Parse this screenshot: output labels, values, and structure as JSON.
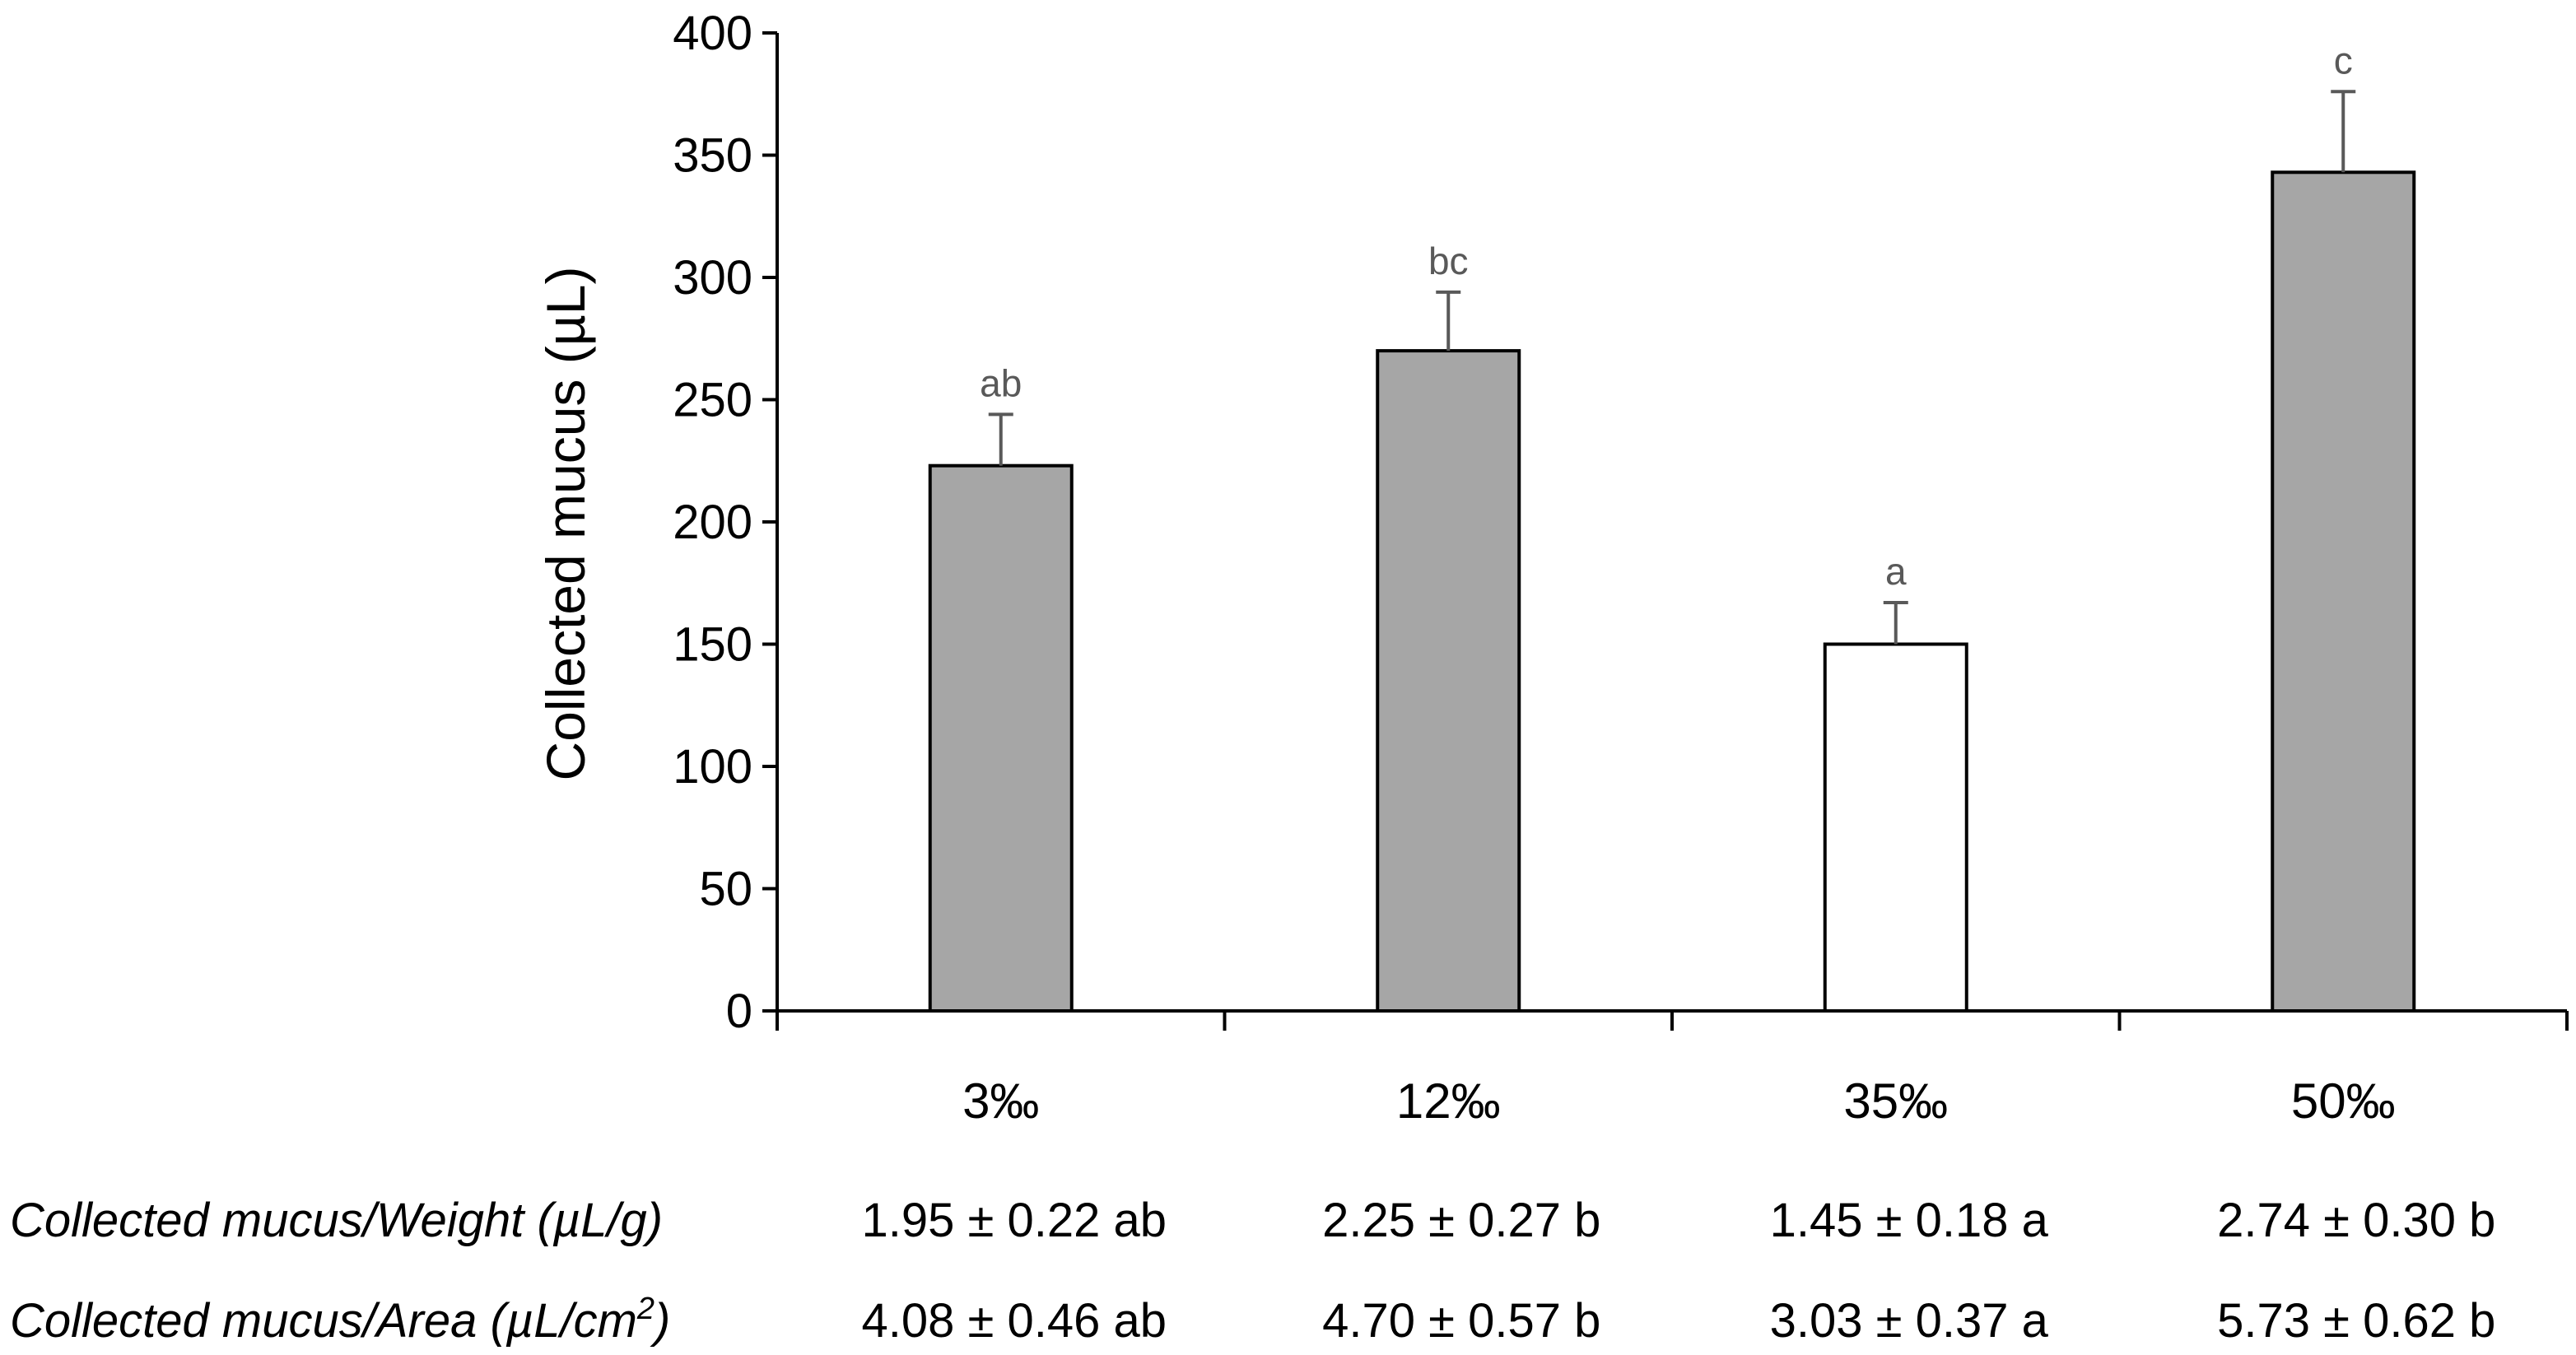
{
  "chart_data": {
    "type": "bar",
    "title": "",
    "xlabel": "",
    "ylabel": "Collected mucus (µL)",
    "ylim": [
      0,
      400
    ],
    "yticks": [
      0,
      50,
      100,
      150,
      200,
      250,
      300,
      350,
      400
    ],
    "grid": false,
    "categories": [
      "3‰",
      "12‰",
      "35‰",
      "50‰"
    ],
    "values": [
      223,
      270,
      150,
      343
    ],
    "errors": [
      21,
      24,
      17,
      33
    ],
    "significance": [
      "ab",
      "bc",
      "a",
      "c"
    ],
    "bar_colors": [
      "#a6a6a6",
      "#a6a6a6",
      "#ffffff",
      "#a6a6a6"
    ],
    "bar_edge_color": "#000000",
    "error_color": "#595959",
    "table": {
      "rows": [
        {
          "label_main": "Collected mucus/Weight (µL/g)",
          "label_sup": "",
          "label_end": "",
          "values": [
            "1.95 ± 0.22 ab",
            "2.25 ± 0.27 b",
            "1.45 ± 0.18 a",
            "2.74 ± 0.30 b"
          ]
        },
        {
          "label_main": "Collected mucus/Area (µL/cm",
          "label_sup": "2",
          "label_end": ")",
          "values": [
            "4.08 ± 0.46 ab",
            "4.70 ± 0.57 b",
            "3.03 ± 0.37 a",
            "5.73 ± 0.62 b"
          ]
        }
      ]
    }
  }
}
